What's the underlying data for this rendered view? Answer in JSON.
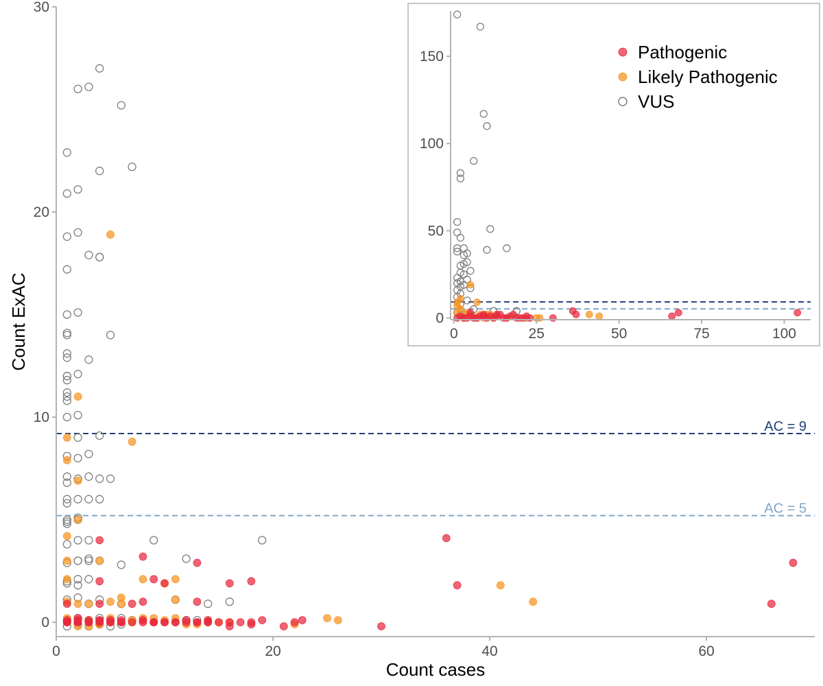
{
  "colors": {
    "pathogenic": "#e8283e",
    "likely_pathogenic": "#f7931e",
    "vus": "#7f7f7f",
    "ac9_line": "#1f3f7a",
    "ac5_line": "#7ea6c8",
    "axis": "#b3b3b3"
  },
  "chart_data": [
    {
      "type": "scatter",
      "xlabel": "Count cases",
      "ylabel": "Count ExAC",
      "xlim": [
        0,
        70
      ],
      "ylim": [
        -0.7,
        30
      ],
      "xticks": [
        0,
        20,
        40,
        60
      ],
      "yticks": [
        0,
        10,
        20,
        30
      ],
      "xtick_labels": [
        "0",
        "20",
        "40",
        "60"
      ],
      "ytick_labels": [
        "0",
        "10",
        "20",
        "30"
      ],
      "grid": false,
      "reference_lines": [
        {
          "y": 9.2,
          "label": "AC = 9",
          "color": "#1f3f7a"
        },
        {
          "y": 5.2,
          "label": "AC = 5",
          "color": "#7ea6c8"
        }
      ],
      "series": [
        {
          "name": "Pathogenic",
          "marker": "filled",
          "x": [
            1,
            1,
            1,
            1,
            2,
            2,
            2,
            3,
            3,
            3,
            4,
            4,
            4,
            4,
            4,
            5,
            5,
            6,
            7,
            8,
            8,
            8,
            9,
            9,
            10,
            10,
            11,
            12,
            13,
            13,
            13,
            14,
            14,
            15,
            16,
            16,
            18,
            18,
            19,
            21,
            22,
            22.7,
            30,
            36,
            37,
            66,
            68,
            1,
            2,
            3,
            4,
            5,
            6,
            7,
            8,
            9,
            10,
            11,
            12,
            13,
            14,
            16,
            17,
            18,
            2,
            4,
            6
          ],
          "y": [
            0,
            0.1,
            0.9,
            0,
            0,
            0.2,
            0,
            0,
            0.1,
            0,
            0,
            0.9,
            2.0,
            4.0,
            0.1,
            0,
            0.1,
            0,
            0.9,
            0.1,
            1.0,
            3.2,
            0,
            2.1,
            0,
            1.9,
            0,
            0.1,
            1.0,
            2.9,
            0,
            0,
            0.1,
            0,
            1.9,
            -0.2,
            -0.1,
            2.0,
            0.1,
            -0.2,
            0,
            0.1,
            -0.2,
            4.1,
            1.8,
            0.9,
            2.9,
            0,
            0,
            0,
            0,
            0,
            0,
            0,
            0,
            0,
            0,
            0,
            0,
            0,
            0,
            0,
            0,
            0,
            0.1,
            0.1,
            0.1
          ]
        },
        {
          "name": "Likely Pathogenic",
          "marker": "filled",
          "x": [
            1,
            1,
            1,
            1,
            1,
            1,
            1,
            2,
            2,
            2,
            2,
            2,
            3,
            3,
            4,
            4,
            5,
            5,
            5,
            6,
            6,
            7,
            7,
            8,
            9,
            9,
            10,
            11,
            11,
            12,
            16,
            22,
            25,
            26,
            41,
            44,
            1,
            2,
            3,
            4,
            5,
            6,
            7,
            8,
            9,
            10,
            11,
            2,
            3,
            1,
            2,
            13,
            14,
            15,
            5,
            8
          ],
          "y": [
            9.0,
            7.9,
            4.2,
            3.0,
            2.1,
            1.0,
            0,
            11.0,
            6.9,
            5.0,
            0.9,
            0,
            0.1,
            0.9,
            3.0,
            -0.1,
            18.9,
            1.0,
            0,
            1.2,
            0.9,
            8.8,
            0,
            2.1,
            0.2,
            0,
            1.9,
            2.1,
            1.1,
            -0.1,
            0,
            -0.1,
            0.2,
            0.1,
            1.8,
            1.0,
            0.2,
            0.1,
            0.1,
            -0.1,
            0.2,
            0,
            0.1,
            0.1,
            0,
            0.1,
            0.2,
            -0.2,
            -0.2,
            0.1,
            0.1,
            -0.1,
            0.1,
            0,
            0,
            0.2
          ]
        },
        {
          "name": "VUS",
          "marker": "open",
          "x": [
            4,
            2,
            3,
            6,
            1,
            4,
            7,
            2,
            1,
            4,
            1,
            2,
            1,
            3,
            4,
            1,
            2,
            1,
            1,
            5,
            1,
            1,
            3,
            1,
            2,
            1,
            1,
            1,
            1,
            1,
            2,
            4,
            2,
            1,
            3,
            1,
            2,
            3,
            5,
            4,
            1,
            1,
            2,
            1,
            1,
            2,
            3,
            1,
            2,
            4,
            1,
            1,
            2,
            3,
            9,
            1,
            2,
            3,
            4,
            1,
            2,
            3,
            6,
            12,
            19,
            1,
            2,
            3,
            1,
            2,
            4,
            11,
            16,
            6,
            14,
            1,
            2,
            3,
            4,
            5,
            6,
            1,
            2,
            3,
            4,
            5,
            6,
            7,
            1,
            2,
            3,
            12,
            13,
            2
          ],
          "y": [
            27,
            26,
            26.1,
            25.2,
            22.9,
            22.0,
            22.2,
            21.1,
            20.9,
            17.8,
            18.8,
            19.0,
            17.2,
            17.9,
            17.8,
            15.0,
            15.1,
            14.0,
            14.1,
            14.0,
            13.1,
            12.9,
            12.8,
            12.0,
            12.1,
            12.0,
            11.8,
            11.2,
            11.0,
            10.8,
            10.1,
            9.1,
            7.0,
            10.0,
            8.2,
            8.1,
            8.0,
            7.1,
            7.0,
            7.0,
            7.1,
            6.8,
            6.0,
            6.0,
            5.8,
            5.0,
            6.0,
            5.0,
            5.1,
            6.0,
            4.8,
            4.9,
            4.0,
            4.0,
            4.0,
            3.8,
            3.0,
            3.0,
            3.0,
            2.9,
            3.0,
            3.1,
            2.8,
            3.1,
            4.0,
            2.0,
            2.1,
            2.1,
            1.9,
            1.8,
            1.1,
            1.1,
            1.0,
            0.9,
            0.9,
            0.1,
            0.2,
            0.1,
            0.2,
            0.1,
            0.2,
            -0.2,
            -0.1,
            -0.2,
            -0.1,
            -0.2,
            -0.1,
            0.1,
            1.1,
            1.2,
            0.9,
            0.1,
            0.1,
            9.0
          ]
        }
      ],
      "legend": {
        "placement": "inset",
        "entries": [
          "Pathogenic",
          "Likely Pathogenic",
          "VUS"
        ]
      }
    },
    {
      "type": "scatter",
      "inset": true,
      "xlim": [
        -1,
        108
      ],
      "ylim": [
        -1,
        176
      ],
      "xticks": [
        0,
        25,
        50,
        75,
        100
      ],
      "yticks": [
        0,
        50,
        100,
        150
      ],
      "xtick_labels": [
        "0",
        "25",
        "50",
        "75",
        "100"
      ],
      "ytick_labels": [
        "0",
        "50",
        "100",
        "150"
      ],
      "grid": false,
      "reference_lines": [
        {
          "y": 9.2,
          "color": "#1f3f7a"
        },
        {
          "y": 5.2,
          "color": "#7ea6c8"
        }
      ],
      "legend": {
        "placement": "top-right",
        "entries": [
          "Pathogenic",
          "Likely Pathogenic",
          "VUS"
        ]
      },
      "series": [
        {
          "name": "Pathogenic",
          "marker": "filled",
          "x": [
            1,
            2,
            3,
            4,
            5,
            6,
            7,
            8,
            9,
            10,
            11,
            12,
            13,
            14,
            15,
            16,
            17,
            18,
            19,
            20,
            21,
            22,
            23,
            30,
            36,
            37,
            66,
            68,
            104,
            5,
            9,
            13
          ],
          "y": [
            0,
            1,
            0,
            0,
            1,
            0,
            0,
            1,
            2,
            0,
            1,
            0,
            1,
            2,
            0,
            0,
            1,
            2,
            0,
            0,
            0,
            1,
            0,
            0,
            4,
            2,
            1,
            3,
            3,
            3,
            1,
            2
          ]
        },
        {
          "name": "Likely Pathogenic",
          "marker": "filled",
          "x": [
            1,
            1,
            2,
            2,
            3,
            4,
            5,
            6,
            7,
            7,
            8,
            9,
            10,
            11,
            12,
            16,
            22,
            25,
            26,
            41,
            44,
            1,
            3
          ],
          "y": [
            9,
            3,
            11,
            5,
            1,
            3,
            19,
            1,
            9,
            0,
            2,
            0,
            2,
            2,
            0,
            0,
            0,
            0,
            0,
            2,
            1,
            7,
            0
          ]
        },
        {
          "name": "VUS",
          "marker": "open",
          "x": [
            1,
            8,
            9,
            10,
            2,
            6,
            2,
            1,
            4,
            1,
            2,
            3,
            11,
            10,
            16,
            1,
            3,
            4,
            2,
            3,
            1,
            2,
            5,
            3,
            1,
            4,
            1,
            2,
            3,
            5,
            2,
            1,
            4,
            2,
            6,
            12,
            19,
            1,
            2,
            3,
            9,
            1,
            2
          ],
          "y": [
            174,
            167,
            117,
            110,
            83,
            90,
            80,
            55,
            37,
            49,
            46,
            40,
            51,
            39,
            40,
            40,
            36,
            32,
            30,
            31,
            38,
            26,
            27,
            25,
            20,
            22,
            16,
            18,
            19,
            17,
            14,
            12,
            10,
            8,
            5,
            4,
            4,
            3,
            2,
            2,
            1,
            23,
            21
          ]
        }
      ]
    }
  ]
}
